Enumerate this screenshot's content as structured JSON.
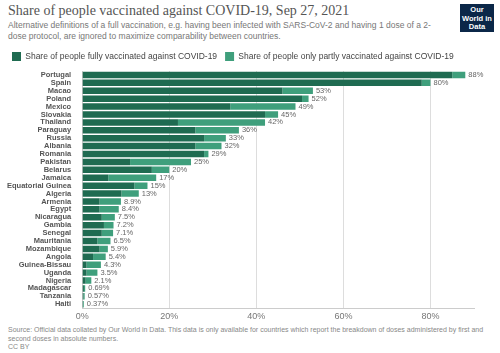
{
  "chart_data": {
    "type": "bar",
    "orientation": "horizontal",
    "stacked": true,
    "grid": true,
    "legend": "top-left",
    "title": "Share of people vaccinated against COVID-19, Sep 27, 2021",
    "subtitle": "Alternative definitions of a full vaccination, e.g. having been infected with SARS-CoV-2 and having 1 dose of a 2-dose protocol, are ignored to maximize comparability between countries.",
    "logo": "Our World in Data",
    "source": "Source: Official data collated by Our World in Data. This data is only available for countries which report the breakdown of doses administered by first and second doses in absolute numbers.",
    "license": "CC BY",
    "categories": [
      "Portugal",
      "Spain",
      "Macao",
      "Poland",
      "Mexico",
      "Slovakia",
      "Thailand",
      "Paraguay",
      "Russia",
      "Albania",
      "Romania",
      "Pakistan",
      "Belarus",
      "Jamaica",
      "Equatorial Guinea",
      "Algeria",
      "Armenia",
      "Egypt",
      "Nicaragua",
      "Gambia",
      "Senegal",
      "Mauritania",
      "Mozambique",
      "Angola",
      "Guinea-Bissau",
      "Uganda",
      "Nigeria",
      "Madagascar",
      "Tanzania",
      "Haiti"
    ],
    "series": [
      {
        "name": "Share of people fully vaccinated against COVID-19",
        "color": "#1f6b51",
        "values": [
          85,
          78,
          46,
          50.5,
          34,
          42,
          22,
          26,
          28,
          26,
          28,
          11,
          16,
          6,
          12,
          9,
          4,
          4,
          4.5,
          5,
          4.5,
          3.5,
          4,
          2.5,
          1,
          1,
          0.8,
          0.4,
          0.3,
          0.2
        ]
      },
      {
        "name": "Share of people only partly vaccinated against COVID-19",
        "color": "#3f9f7c",
        "values": [
          3,
          2,
          7,
          1.5,
          15,
          3,
          20,
          10,
          5,
          6,
          1,
          14,
          4,
          11,
          3,
          4,
          4.9,
          4.4,
          3,
          2.2,
          2.6,
          3,
          1.9,
          2.9,
          3.3,
          2.5,
          1.3,
          0.29,
          0.27,
          0.17
        ]
      }
    ],
    "totals": [
      88,
      80,
      53,
      52,
      49,
      45,
      42,
      36,
      33,
      32,
      29,
      25,
      20,
      17,
      15,
      13,
      8.9,
      8.4,
      7.5,
      7.2,
      7.1,
      6.5,
      5.9,
      5.4,
      4.3,
      3.5,
      2.1,
      0.69,
      0.57,
      0.37
    ],
    "total_labels": [
      "88%",
      "80%",
      "53%",
      "52%",
      "49%",
      "45%",
      "42%",
      "36%",
      "33%",
      "32%",
      "29%",
      "25%",
      "20%",
      "17%",
      "15%",
      "13%",
      "8.9%",
      "8.4%",
      "7.5%",
      "7.2%",
      "7.1%",
      "6.5%",
      "5.9%",
      "5.4%",
      "4.3%",
      "3.5%",
      "2.1%",
      "0.69%",
      "0.57%",
      "0.37%"
    ],
    "xlim": [
      0,
      90
    ],
    "xticks": [
      {
        "value": 0,
        "label": "0%"
      },
      {
        "value": 20,
        "label": "20%"
      },
      {
        "value": 40,
        "label": "40%"
      },
      {
        "value": 60,
        "label": "60%"
      },
      {
        "value": 80,
        "label": "80%"
      }
    ]
  }
}
